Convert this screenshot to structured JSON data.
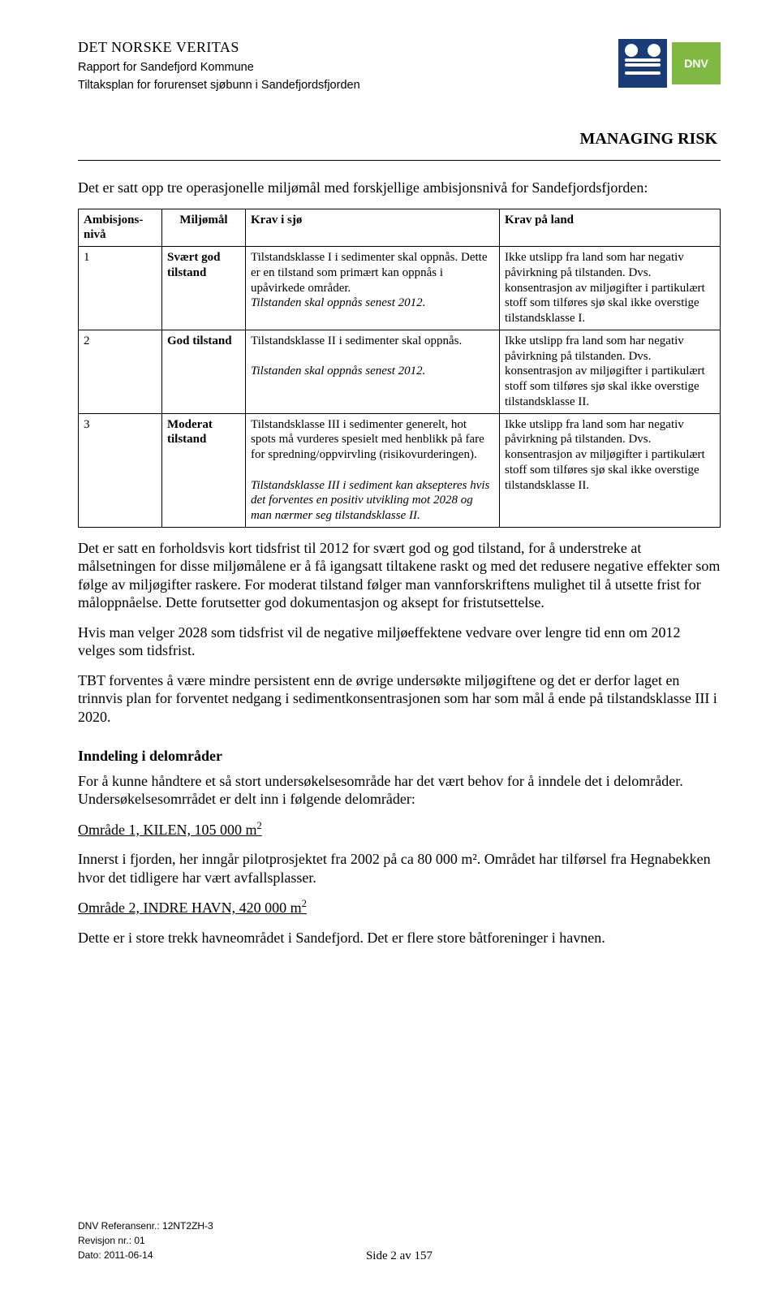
{
  "header": {
    "company": "DET NORSKE VERITAS",
    "sub1": "Rapport for Sandefjord Kommune",
    "sub2": "Tiltaksplan for forurenset sjøbunn i Sandefjordsfjorden",
    "managing_risk": "MANAGING RISK",
    "logo_triangle_text": "DNV"
  },
  "intro": "Det er satt opp tre operasjonelle miljømål med forskjellige ambisjonsnivå for Sandefjordsfjorden:",
  "table": {
    "headers": {
      "nivaa": "Ambisjons-nivå",
      "miljomal": "Miljømål",
      "sjo": "Krav i sjø",
      "land": "Krav på land"
    },
    "rows": [
      {
        "nivaa": "1",
        "miljomal": "Svært god tilstand",
        "sjo_main": "Tilstandsklasse I i sedimenter skal oppnås. Dette er en tilstand som primært kan oppnås i upåvirkede områder.",
        "sjo_italic": "Tilstanden skal oppnås senest 2012.",
        "land": "Ikke utslipp fra land som har negativ påvirkning på tilstanden. Dvs. konsentrasjon av miljøgifter i partikulært stoff som tilføres sjø skal ikke overstige tilstandsklasse I."
      },
      {
        "nivaa": "2",
        "miljomal": "God tilstand",
        "sjo_main": "Tilstandsklasse II i sedimenter skal oppnås.",
        "sjo_italic": "Tilstanden skal oppnås senest 2012.",
        "land": "Ikke utslipp fra land som har negativ påvirkning på tilstanden. Dvs. konsentrasjon av miljøgifter i partikulært stoff som tilføres sjø skal ikke overstige tilstandsklasse II."
      },
      {
        "nivaa": "3",
        "miljomal": "Moderat tilstand",
        "sjo_main": "Tilstandsklasse III i sedimenter generelt, hot spots må vurderes spesielt med henblikk på fare for spredning/oppvirvling (risikovurderingen).",
        "sjo_italic": "Tilstandsklasse III i sediment kan aksepteres hvis det forventes en positiv utvikling mot 2028 og man nærmer seg tilstandsklasse II.",
        "land": "Ikke utslipp fra land som har negativ påvirkning på tilstanden. Dvs. konsentrasjon av miljøgifter i partikulært stoff som tilføres sjø skal ikke overstige tilstandsklasse II."
      }
    ]
  },
  "paras": {
    "p1": "Det er satt en forholdsvis kort tidsfrist til 2012 for svært god og god tilstand, for å understreke at målsetningen for disse miljømålene er å få igangsatt tiltakene raskt og med det redusere negative effekter som følge av miljøgifter raskere. For moderat tilstand følger man vannforskriftens mulighet til å utsette frist for måloppnåelse. Dette forutsetter god dokumentasjon og aksept for fristutsettelse.",
    "p2": "Hvis man velger 2028 som tidsfrist vil de negative miljøeffektene vedvare over lengre tid enn om 2012 velges som tidsfrist.",
    "p3": "TBT forventes å være mindre persistent enn de øvrige undersøkte miljøgiftene og det er derfor laget en trinnvis plan for forventet nedgang i sedimentkonsentrasjonen som har som mål å ende på tilstandsklasse III i 2020."
  },
  "section": {
    "title": "Inndeling i delområder",
    "intro": "For å kunne håndtere et så stort undersøkelsesområde har det vært behov for å inndele det i delområder. Undersøkelsesomrrådet er delt inn i følgende delområder:",
    "area1_label": "Område 1, KILEN, 105 000 m",
    "area1_desc": "Innerst i fjorden, her inngår pilotprosjektet fra 2002 på ca 80 000 m². Området har tilførsel fra Hegnabekken hvor det tidligere har vært avfallsplasser.",
    "area2_label": "Område 2, INDRE HAVN, 420 000 m",
    "area2_desc": "Dette er i store trekk havneområdet i Sandefjord. Det er flere store båtforeninger i havnen."
  },
  "footer": {
    "ref": "DNV Referansenr.: 12NT2ZH-3",
    "rev": "Revisjon nr.: 01",
    "date": "Dato: 2011-06-14",
    "page": "Side 2 av 157"
  }
}
